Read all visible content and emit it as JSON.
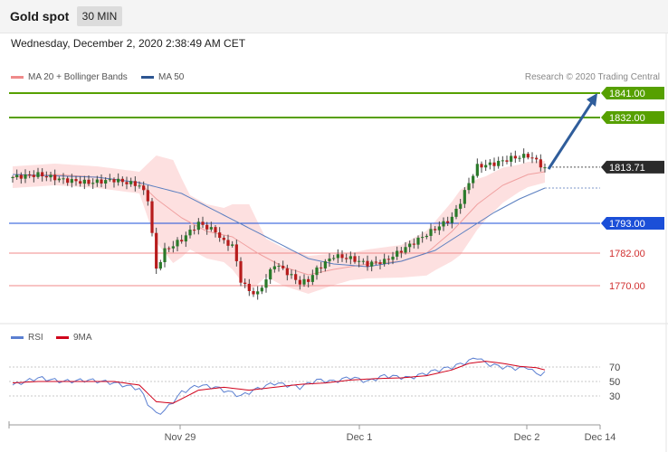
{
  "header": {
    "title": "Gold spot",
    "timeframe": "30 MIN"
  },
  "timestamp": "Wednesday, December 2, 2020 2:38:49 AM CET",
  "legend": {
    "ma20": {
      "label": "MA 20 + Bollinger Bands",
      "color": "#ef8a8a"
    },
    "ma50": {
      "label": "MA 50",
      "color": "#2c5591"
    }
  },
  "copyright": "Research © 2020 Trading Central",
  "rsi_legend": {
    "rsi": {
      "label": "RSI",
      "color": "#5b7fd1"
    },
    "ma9": {
      "label": "9MA",
      "color": "#d0021b"
    }
  },
  "colors": {
    "target": "#56a000",
    "pivot": "#1b4fd8",
    "support": "#d13030",
    "price": "#333333",
    "arrow": "#2f5d9b",
    "candle_up": "#2a7a2a",
    "candle_down": "#b71c1c"
  },
  "chart_data": [
    {
      "type": "candlestick",
      "title": "Gold spot",
      "ylim": [
        1757,
        1852
      ],
      "x_labels": [
        "Nov 29",
        "Dec 1",
        "Dec 2",
        "Dec 14"
      ],
      "levels": [
        {
          "label": "1841.00",
          "value": 1841.0,
          "kind": "target"
        },
        {
          "label": "1832.00",
          "value": 1832.0,
          "kind": "target"
        },
        {
          "label": "1813.71",
          "value": 1813.71,
          "kind": "price"
        },
        {
          "label": "1793.00",
          "value": 1793.0,
          "kind": "pivot"
        },
        {
          "label": "1782.00",
          "value": 1782.0,
          "kind": "support"
        },
        {
          "label": "1770.00",
          "value": 1770.0,
          "kind": "support"
        }
      ],
      "close_waypoints": [
        [
          0,
          1810
        ],
        [
          6,
          1811
        ],
        [
          12,
          1809
        ],
        [
          18,
          1808
        ],
        [
          24,
          1809
        ],
        [
          30,
          1807
        ],
        [
          32,
          1802
        ],
        [
          34,
          1776
        ],
        [
          36,
          1783
        ],
        [
          40,
          1787
        ],
        [
          44,
          1793
        ],
        [
          48,
          1790
        ],
        [
          50,
          1786
        ],
        [
          52,
          1785
        ],
        [
          54,
          1772
        ],
        [
          56,
          1768
        ],
        [
          58,
          1767
        ],
        [
          62,
          1778
        ],
        [
          64,
          1776
        ],
        [
          68,
          1771
        ],
        [
          70,
          1772
        ],
        [
          72,
          1776
        ],
        [
          76,
          1781
        ],
        [
          80,
          1780
        ],
        [
          84,
          1778
        ],
        [
          88,
          1779
        ],
        [
          92,
          1783
        ],
        [
          96,
          1787
        ],
        [
          100,
          1791
        ],
        [
          104,
          1795
        ],
        [
          106,
          1801
        ],
        [
          108,
          1808
        ],
        [
          110,
          1814
        ],
        [
          114,
          1815
        ],
        [
          118,
          1817
        ],
        [
          122,
          1818
        ],
        [
          124,
          1816
        ],
        [
          126,
          1813
        ]
      ],
      "ma50_waypoints": [
        [
          0,
          1811
        ],
        [
          20,
          1810
        ],
        [
          30,
          1808
        ],
        [
          40,
          1804
        ],
        [
          50,
          1796
        ],
        [
          60,
          1788
        ],
        [
          70,
          1780
        ],
        [
          76,
          1778
        ],
        [
          84,
          1777
        ],
        [
          92,
          1779
        ],
        [
          100,
          1783
        ],
        [
          108,
          1791
        ],
        [
          114,
          1797
        ],
        [
          120,
          1802
        ],
        [
          126,
          1806
        ]
      ],
      "ma20_waypoints": [
        [
          0,
          1810
        ],
        [
          10,
          1811
        ],
        [
          20,
          1810
        ],
        [
          30,
          1808
        ],
        [
          34,
          1802
        ],
        [
          40,
          1795
        ],
        [
          46,
          1790
        ],
        [
          52,
          1788
        ],
        [
          58,
          1782
        ],
        [
          64,
          1777
        ],
        [
          70,
          1774
        ],
        [
          76,
          1776
        ],
        [
          84,
          1778
        ],
        [
          92,
          1779
        ],
        [
          98,
          1782
        ],
        [
          104,
          1790
        ],
        [
          110,
          1800
        ],
        [
          116,
          1807
        ],
        [
          122,
          1811
        ],
        [
          126,
          1812
        ]
      ],
      "band_width_waypoints": [
        [
          0,
          4
        ],
        [
          30,
          4
        ],
        [
          34,
          16
        ],
        [
          38,
          19
        ],
        [
          42,
          10
        ],
        [
          50,
          10
        ],
        [
          56,
          16
        ],
        [
          60,
          7
        ],
        [
          70,
          7
        ],
        [
          80,
          5
        ],
        [
          92,
          6
        ],
        [
          100,
          9
        ],
        [
          106,
          12
        ],
        [
          112,
          8
        ],
        [
          120,
          5
        ],
        [
          126,
          4
        ]
      ],
      "forecast_target": 1841.0
    },
    {
      "type": "line",
      "title": "RSI",
      "ylim": [
        0,
        100
      ],
      "tick_labels": [
        "70",
        "50",
        "30"
      ],
      "series": [
        {
          "name": "RSI",
          "waypoints": [
            [
              0,
              45
            ],
            [
              6,
              55
            ],
            [
              12,
              50
            ],
            [
              18,
              52
            ],
            [
              24,
              48
            ],
            [
              30,
              40
            ],
            [
              32,
              20
            ],
            [
              34,
              5
            ],
            [
              36,
              10
            ],
            [
              40,
              35
            ],
            [
              44,
              45
            ],
            [
              48,
              42
            ],
            [
              50,
              38
            ],
            [
              54,
              30
            ],
            [
              58,
              40
            ],
            [
              62,
              48
            ],
            [
              68,
              42
            ],
            [
              72,
              52
            ],
            [
              76,
              50
            ],
            [
              80,
              56
            ],
            [
              84,
              50
            ],
            [
              88,
              58
            ],
            [
              94,
              55
            ],
            [
              100,
              65
            ],
            [
              104,
              70
            ],
            [
              108,
              78
            ],
            [
              110,
              84
            ],
            [
              112,
              75
            ],
            [
              116,
              70
            ],
            [
              120,
              68
            ],
            [
              122,
              70
            ],
            [
              124,
              60
            ],
            [
              126,
              62
            ]
          ]
        },
        {
          "name": "9MA",
          "waypoints": [
            [
              0,
              48
            ],
            [
              6,
              50
            ],
            [
              12,
              50
            ],
            [
              18,
              50
            ],
            [
              24,
              50
            ],
            [
              30,
              45
            ],
            [
              34,
              22
            ],
            [
              38,
              20
            ],
            [
              44,
              38
            ],
            [
              50,
              42
            ],
            [
              56,
              38
            ],
            [
              62,
              42
            ],
            [
              68,
              46
            ],
            [
              74,
              48
            ],
            [
              80,
              52
            ],
            [
              86,
              54
            ],
            [
              92,
              55
            ],
            [
              98,
              58
            ],
            [
              104,
              66
            ],
            [
              108,
              75
            ],
            [
              112,
              78
            ],
            [
              116,
              75
            ],
            [
              120,
              71
            ],
            [
              124,
              69
            ],
            [
              126,
              66
            ]
          ]
        }
      ]
    }
  ]
}
